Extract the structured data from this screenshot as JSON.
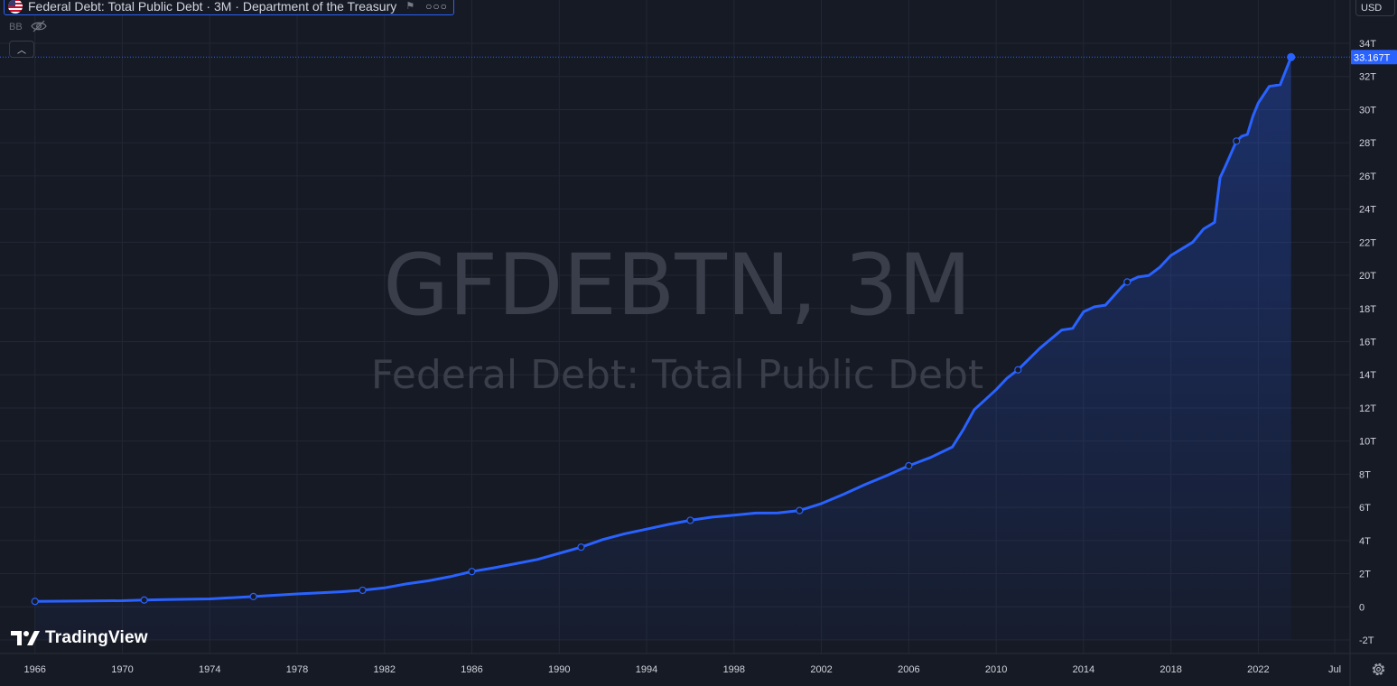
{
  "legend": {
    "title": "Federal Debt: Total Public Debt · 3M · Department of the Treasury",
    "flag_icon": "us-flag-icon",
    "flag_mark_icon": "flag-icon",
    "more_icon": "more-horizontal-icon"
  },
  "indicator": {
    "label": "BB",
    "visibility_icon": "eye-off-icon",
    "collapse_icon": "chevron-up-icon"
  },
  "currency": "USD",
  "watermark": {
    "symbol": "GFDEBTN, 3M",
    "name": "Federal Debt: Total Public Debt"
  },
  "logo": {
    "text": "TradingView",
    "icon": "tradingview-logo-icon"
  },
  "settings_icon": "gear-icon",
  "colors": {
    "background": "#161a25",
    "grid": "#232733",
    "line": "#2962ff",
    "axis_text": "#d1d4dc",
    "price_tag_bg": "#2962ff",
    "watermark": "#3a3e4a"
  },
  "chart_data": {
    "type": "area",
    "title": "Federal Debt: Total Public Debt",
    "units": "USD",
    "ylim": [
      -2,
      34
    ],
    "y_ticks": [
      "34T",
      "32T",
      "30T",
      "28T",
      "26T",
      "24T",
      "22T",
      "20T",
      "18T",
      "16T",
      "14T",
      "12T",
      "10T",
      "8T",
      "6T",
      "4T",
      "2T",
      "0",
      "-2T"
    ],
    "y_tick_values": [
      34,
      32,
      30,
      28,
      26,
      24,
      22,
      20,
      18,
      16,
      14,
      12,
      10,
      8,
      6,
      4,
      2,
      0,
      -2
    ],
    "x_ticks": [
      "1966",
      "1970",
      "1974",
      "1978",
      "1982",
      "1986",
      "1990",
      "1994",
      "1998",
      "2002",
      "2006",
      "2010",
      "2014",
      "2018",
      "2022",
      "Jul"
    ],
    "x_tick_values": [
      1966,
      1970,
      1974,
      1978,
      1982,
      1986,
      1990,
      1994,
      1998,
      2002,
      2006,
      2010,
      2014,
      2018,
      2022,
      2025.5
    ],
    "xlim": [
      1964.4,
      2026.2
    ],
    "last_value_label": "33.167T",
    "last_value": 33.167,
    "grid": true,
    "series": [
      {
        "name": "GFDEBTN",
        "unit": "trillion USD",
        "x": [
          1966,
          1968,
          1970,
          1971,
          1972,
          1974,
          1976,
          1978,
          1980,
          1981,
          1982,
          1983,
          1984,
          1985,
          1986,
          1987,
          1988,
          1989,
          1990,
          1991,
          1992,
          1993,
          1994,
          1995,
          1996,
          1997,
          1998,
          1999,
          2000,
          2001,
          2002,
          2003,
          2004,
          2005,
          2006,
          2007,
          2008,
          2008.5,
          2009,
          2009.5,
          2010,
          2010.5,
          2011,
          2012,
          2013,
          2013.5,
          2014,
          2014.5,
          2015,
          2015.75,
          2016,
          2016.5,
          2017,
          2017.5,
          2018,
          2018.5,
          2019,
          2019.5,
          2020,
          2020.25,
          2020.5,
          2021,
          2021.25,
          2021.5,
          2021.75,
          2022,
          2022.5,
          2023,
          2023.5
        ],
        "y": [
          0.33,
          0.35,
          0.37,
          0.41,
          0.44,
          0.48,
          0.62,
          0.78,
          0.91,
          1.0,
          1.14,
          1.38,
          1.57,
          1.82,
          2.13,
          2.35,
          2.6,
          2.86,
          3.23,
          3.6,
          4.06,
          4.41,
          4.69,
          4.97,
          5.22,
          5.41,
          5.53,
          5.66,
          5.67,
          5.81,
          6.23,
          6.78,
          7.38,
          7.93,
          8.51,
          9.01,
          9.65,
          10.7,
          11.9,
          12.5,
          13.1,
          13.8,
          14.3,
          15.6,
          16.7,
          16.8,
          17.8,
          18.1,
          18.2,
          19.3,
          19.6,
          19.9,
          20.0,
          20.5,
          21.2,
          21.6,
          22.0,
          22.8,
          23.2,
          25.9,
          26.6,
          28.1,
          28.4,
          28.5,
          29.6,
          30.4,
          31.4,
          31.5,
          33.167
        ]
      }
    ],
    "markers_x": [
      1966,
      1971,
      1976,
      1981,
      1986,
      1991,
      1996,
      2001,
      2006,
      2011,
      2016,
      2021
    ]
  }
}
